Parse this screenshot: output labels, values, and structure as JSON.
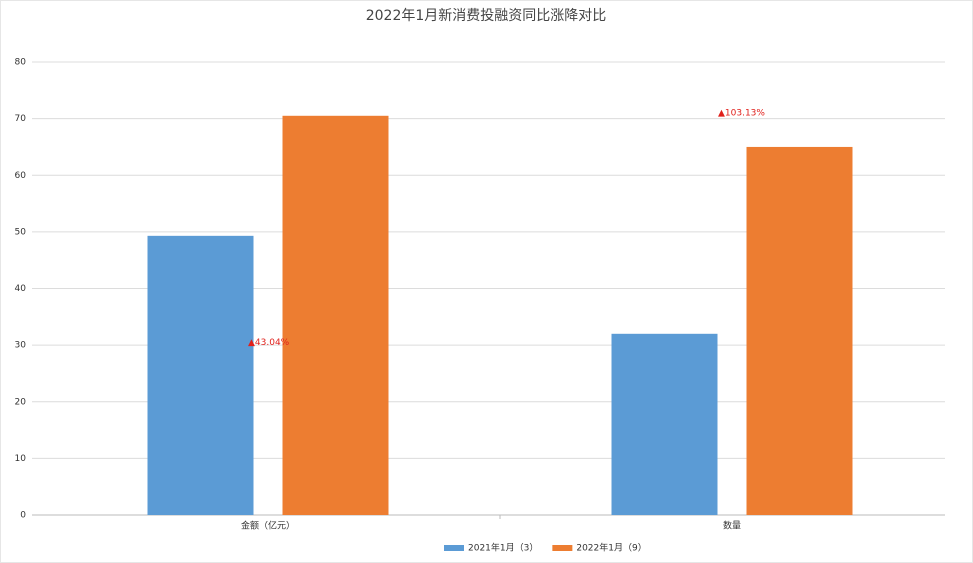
{
  "chart_data": {
    "type": "bar",
    "title": "2022年1月新消费投融资同比涨降对比",
    "categories": [
      "金额（亿元）",
      "数量"
    ],
    "series": [
      {
        "name": "2021年1月（3）",
        "color": "#5b9bd5",
        "values": [
          49.3,
          32
        ]
      },
      {
        "name": "2022年1月（9）",
        "color": "#ed7d31",
        "values": [
          70.5,
          65
        ]
      }
    ],
    "annotations": [
      "▲43.04%",
      "▲103.13%"
    ],
    "ylim": [
      0,
      80
    ],
    "yticks": [
      0,
      10,
      20,
      30,
      40,
      50,
      60,
      70,
      80
    ],
    "grid": true,
    "legend": "bottom"
  }
}
